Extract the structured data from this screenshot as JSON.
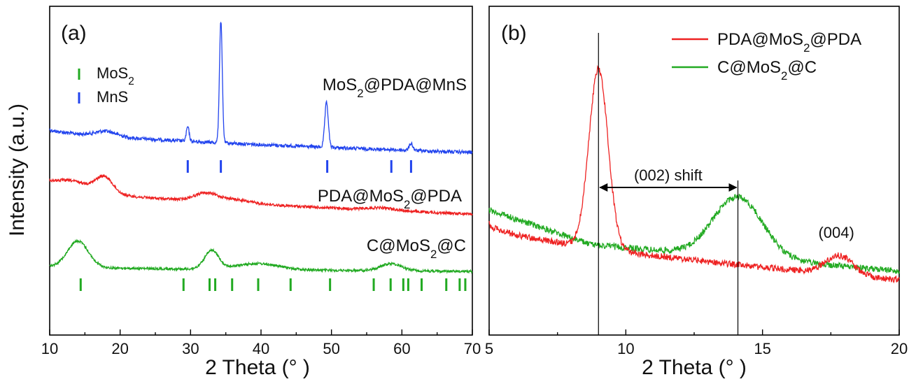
{
  "ylabel": "Intensity (a.u.)",
  "chart_data": [
    {
      "panel_label": "(a)",
      "type": "line",
      "xlabel": "2 Theta (° )",
      "ylabel": "Intensity (a.u.)",
      "xlim": [
        10,
        70
      ],
      "xticks": [
        10,
        20,
        30,
        40,
        50,
        60,
        70
      ],
      "yticks_shown": false,
      "grid": false,
      "legend_position": "top-left",
      "legend": [
        {
          "label": "MoS",
          "sub": "2",
          "color": "#22aa22"
        },
        {
          "label": "MnS",
          "sub": "",
          "color": "#2244ee"
        }
      ],
      "series": [
        {
          "name": "MoS2@PDA@MnS",
          "label_main": "MoS",
          "label_sub": "2",
          "label_rest": "@PDA@MnS",
          "color": "#2244ee",
          "baseline_start": 0.81,
          "baseline_end": 0.905,
          "peaks": [
            [
              18,
              0.025,
              1.5
            ],
            [
              29.6,
              0.07,
              0.2
            ],
            [
              34.3,
              0.6,
              0.2
            ],
            [
              49.3,
              0.22,
              0.25
            ],
            [
              61.3,
              0.035,
              0.25
            ]
          ],
          "ref_ticks": [
            29.6,
            34.3,
            49.4,
            58.5,
            61.3
          ]
        },
        {
          "name": "PDA@MoS2@PDA",
          "label_main": "PDA@MoS",
          "label_sub": "2",
          "label_rest": "@PDA",
          "color": "#ee2222",
          "baseline_start": 1.0,
          "baseline_end": 1.0,
          "peaks": [
            [
              13,
              0.05,
              3
            ],
            [
              17.8,
              0.075,
              1.2
            ],
            [
              32,
              0.03,
              1.5
            ],
            [
              35,
              0.02,
              3
            ],
            [
              57,
              0.012,
              2
            ]
          ],
          "ref_ticks": []
        },
        {
          "name": "C@MoS2@C",
          "label_main": "C@MoS",
          "label_sub": "2",
          "label_rest": "@C",
          "color": "#22aa22",
          "baseline_start": 1.0,
          "baseline_end": 1.0,
          "peaks": [
            [
              14,
              0.13,
              1.5
            ],
            [
              33,
              0.09,
              1.0
            ],
            [
              39.5,
              0.03,
              3
            ],
            [
              58.5,
              0.035,
              1.5
            ]
          ],
          "ref_ticks": [
            14.4,
            29,
            32.7,
            33.5,
            35.9,
            39.6,
            44.2,
            49.8,
            56,
            58.4,
            60.2,
            60.9,
            62.8,
            66.3,
            68.2,
            69
          ]
        }
      ]
    },
    {
      "panel_label": "(b)",
      "type": "line",
      "xlabel": "2 Theta (° )",
      "xlim": [
        5,
        20
      ],
      "xticks": [
        5,
        10,
        15,
        20
      ],
      "yticks_shown": false,
      "grid": false,
      "legend_position": "top-right",
      "series": [
        {
          "name": "PDA@MoS2@PDA",
          "label_main": "PDA@MoS",
          "label_sub": "2",
          "label_rest": "@PDA",
          "color": "#ee2222",
          "peaks": [
            [
              9.0,
              0.95,
              0.35
            ],
            [
              17.8,
              0.1,
              0.5
            ]
          ]
        },
        {
          "name": "C@MoS2@C",
          "label_main": "C@MoS",
          "label_sub": "2",
          "label_rest": "@C",
          "color": "#22aa22",
          "peaks": [
            [
              14.1,
              0.32,
              0.9
            ]
          ]
        }
      ],
      "annotations": {
        "shift_label": "(002) shift",
        "shift_from": 9.0,
        "shift_to": 14.1,
        "peak_label": "(004)",
        "peak_label_x": 17.7
      }
    }
  ]
}
